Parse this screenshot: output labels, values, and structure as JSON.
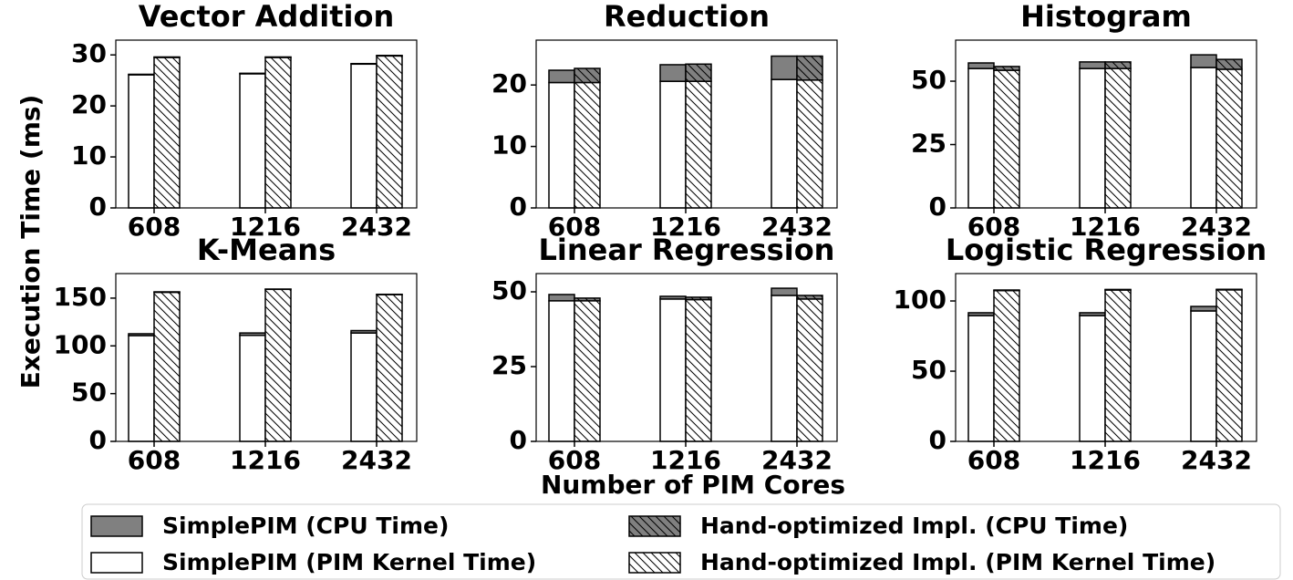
{
  "chart_data": [
    {
      "type": "bar",
      "title": "Vector Addition",
      "categories": [
        "608",
        "1216",
        "2432"
      ],
      "ylim": [
        0,
        32.9
      ],
      "yticks": [
        0,
        10,
        20,
        30
      ],
      "series": [
        {
          "values": [
            0.1,
            0.1,
            0.1
          ]
        },
        {
          "values": [
            26.1,
            26.3,
            28.2
          ]
        },
        {
          "values": [
            0.1,
            0.1,
            0.1
          ]
        },
        {
          "values": [
            29.5,
            29.5,
            29.8
          ]
        }
      ]
    },
    {
      "type": "bar",
      "title": "Reduction",
      "categories": [
        "608",
        "1216",
        "2432"
      ],
      "ylim": [
        0,
        27.3
      ],
      "yticks": [
        0,
        10,
        20
      ],
      "series": [
        {
          "values": [
            2.0,
            2.7,
            3.8
          ]
        },
        {
          "values": [
            20.4,
            20.6,
            20.9
          ]
        },
        {
          "values": [
            2.3,
            2.8,
            3.9
          ]
        },
        {
          "values": [
            20.4,
            20.6,
            20.8
          ]
        }
      ]
    },
    {
      "type": "bar",
      "title": "Histogram",
      "categories": [
        "608",
        "1216",
        "2432"
      ],
      "ylim": [
        0,
        66.2
      ],
      "yticks": [
        0,
        25,
        50
      ],
      "series": [
        {
          "values": [
            2.2,
            2.6,
            5.0
          ]
        },
        {
          "values": [
            55.0,
            55.0,
            55.4
          ]
        },
        {
          "values": [
            1.5,
            2.6,
            3.9
          ]
        },
        {
          "values": [
            54.3,
            55.0,
            54.7
          ]
        }
      ]
    },
    {
      "type": "bar",
      "title": "K-Means",
      "categories": [
        "608",
        "1216",
        "2432"
      ],
      "ylim": [
        0,
        175.7
      ],
      "yticks": [
        0,
        50,
        100,
        150
      ],
      "series": [
        {
          "values": [
            1.9,
            2.5,
            2.5
          ]
        },
        {
          "values": [
            110.8,
            111.0,
            113.5
          ]
        },
        {
          "values": [
            0.5,
            0.3,
            0.3
          ]
        },
        {
          "values": [
            156.1,
            159.2,
            153.7
          ]
        }
      ]
    },
    {
      "type": "bar",
      "title": "Linear Regression",
      "categories": [
        "608",
        "1216",
        "2432"
      ],
      "ylim": [
        0,
        56.1
      ],
      "yticks": [
        0,
        25,
        50
      ],
      "series": [
        {
          "values": [
            2.1,
            0.9,
            2.4
          ]
        },
        {
          "values": [
            47.0,
            47.6,
            48.8
          ]
        },
        {
          "values": [
            0.9,
            0.8,
            1.2
          ]
        },
        {
          "values": [
            47.0,
            47.4,
            47.6
          ]
        }
      ]
    },
    {
      "type": "bar",
      "title": "Logistic Regression",
      "categories": [
        "608",
        "1216",
        "2432"
      ],
      "ylim": [
        0,
        119.5
      ],
      "yticks": [
        0,
        50,
        100
      ],
      "series": [
        {
          "values": [
            2.0,
            2.0,
            3.2
          ]
        },
        {
          "values": [
            89.6,
            89.6,
            92.9
          ]
        },
        {
          "values": [
            0.4,
            0.4,
            0.4
          ]
        },
        {
          "values": [
            107.4,
            107.8,
            107.9
          ]
        }
      ]
    }
  ],
  "ylabel": "Execution Time (ms)",
  "xlabel": "Number of PIM Cores",
  "legend": [
    {
      "name": "SimplePIM (CPU Time)",
      "color": "#808080",
      "hatch": false
    },
    {
      "name": "SimplePIM (PIM Kernel Time)",
      "color": "#ffffff",
      "hatch": false
    },
    {
      "name": "Hand-optimized Impl. (CPU Time)",
      "color": "#808080",
      "hatch": true
    },
    {
      "name": "Hand-optimized Impl. (PIM Kernel Time)",
      "color": "#ffffff",
      "hatch": true
    }
  ]
}
